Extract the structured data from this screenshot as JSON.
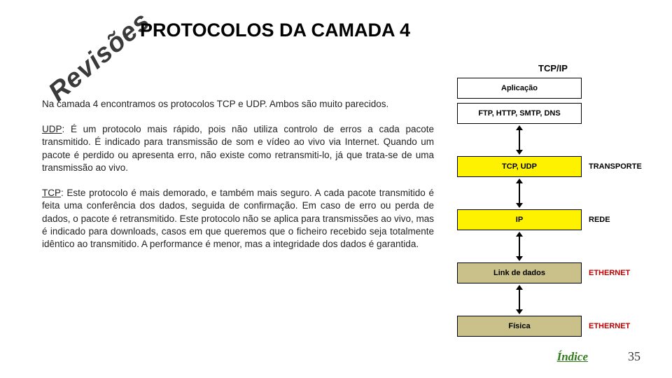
{
  "stamp": "Revisões",
  "title": "PROTOCOLOS DA CAMADA 4",
  "paragraphs": {
    "intro": "Na camada 4 encontramos os protocolos TCP e UDP. Ambos são muito parecidos.",
    "udp_name": "UDP",
    "udp_body": ": É um protocolo mais rápido, pois não utiliza controlo de erros a cada pacote transmitido. É indicado para transmissão de som e vídeo ao vivo via Internet. Quando um pacote é perdido ou apresenta erro, não existe como retransmiti-lo, já que trata-se de uma transmissão ao vivo.",
    "tcp_name": "TCP",
    "tcp_body": ": Este protocolo é mais demorado, e também mais seguro. A cada pacote transmitido é feita uma conferência dos dados, seguida de confirmação. Em caso de erro ou perda de dados, o pacote é retransmitido. Este protocolo não se aplica para transmissões ao vivo, mas é indicado para downloads, casos em que queremos que o ficheiro recebido seja totalmente idêntico ao transmitido. A performance é menor, mas a integridade dos dados é garantida."
  },
  "figure": {
    "title": "TCP/IP",
    "layers": [
      {
        "text": "Aplicação",
        "bg": "#ffffff",
        "label": ""
      },
      {
        "text": "FTP, HTTP, SMTP, DNS",
        "bg": "#ffffff",
        "label": ""
      },
      {
        "text": "TCP, UDP",
        "bg": "#fff200",
        "label": "TRANSPORTE"
      },
      {
        "text": "IP",
        "bg": "#fff200",
        "label": "REDE"
      },
      {
        "text": "Link de dados",
        "bg": "#c9c08a",
        "label": "ETHERNET",
        "label_color": "#c00000"
      },
      {
        "text": "Física",
        "bg": "#c9c08a",
        "label": "ETHERNET",
        "label_color": "#c00000"
      }
    ]
  },
  "footer": {
    "link": "Índice",
    "page": "35"
  }
}
